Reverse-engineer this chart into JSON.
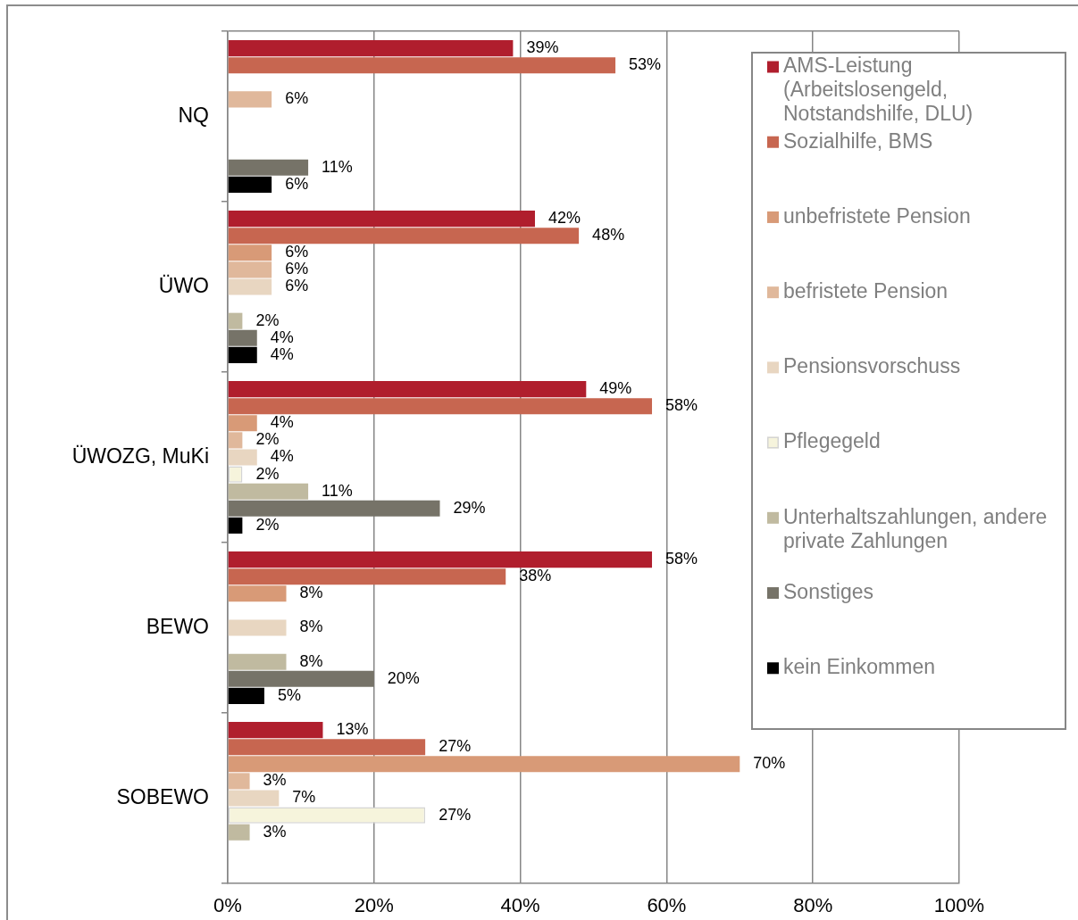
{
  "chart_data": {
    "type": "bar",
    "orientation": "horizontal",
    "categories": [
      "NQ",
      "ÜWO",
      "ÜWOZG, MuKi",
      "BEWO",
      "SOBEWO"
    ],
    "series": [
      {
        "name": "AMS-Leistung (Arbeitslosengeld, Notstandshilfe, DLU)",
        "color": "#b01e2d",
        "values": [
          39,
          42,
          49,
          58,
          13
        ],
        "value_labels": [
          "39%",
          "42%",
          "49%",
          "58%",
          "13%"
        ]
      },
      {
        "name": "Sozialhilfe, BMS",
        "color": "#c76650",
        "values": [
          53,
          48,
          58,
          38,
          27
        ],
        "value_labels": [
          "53%",
          "48%",
          "58%",
          "38%",
          "27%"
        ]
      },
      {
        "name": "unbefristete Pension",
        "color": "#d89a77",
        "values": [
          null,
          6,
          4,
          8,
          70
        ],
        "value_labels": [
          null,
          "6%",
          "4%",
          "8%",
          "70%"
        ]
      },
      {
        "name": "befristete Pension",
        "color": "#e0b89b",
        "values": [
          6,
          6,
          2,
          null,
          3
        ],
        "value_labels": [
          "6%",
          "6%",
          "2%",
          null,
          "3%"
        ]
      },
      {
        "name": "Pensionsvorschuss",
        "color": "#e8d6c1",
        "values": [
          null,
          6,
          4,
          8,
          7
        ],
        "value_labels": [
          null,
          "6%",
          "4%",
          "8%",
          "7%"
        ]
      },
      {
        "name": "Pflegegeld",
        "color": "#f6f4dc",
        "values": [
          null,
          null,
          2,
          null,
          27
        ],
        "value_labels": [
          null,
          null,
          "2%",
          null,
          "27%"
        ]
      },
      {
        "name": "Unterhaltszahlungen, andere private Zahlungen",
        "color": "#c0baa0",
        "values": [
          null,
          2,
          11,
          8,
          3
        ],
        "value_labels": [
          null,
          "2%",
          "11%",
          "8%",
          "3%"
        ]
      },
      {
        "name": "Sonstiges",
        "color": "#767368",
        "values": [
          11,
          4,
          29,
          20,
          null
        ],
        "value_labels": [
          "11%",
          "4%",
          "29%",
          "20%",
          null
        ]
      },
      {
        "name": "kein Einkommen",
        "color": "#000000",
        "values": [
          6,
          4,
          2,
          5,
          null
        ],
        "value_labels": [
          "6%",
          "4%",
          "2%",
          "5%",
          null
        ]
      }
    ],
    "xlim": [
      0,
      100
    ],
    "xticks": [
      {
        "value": 0,
        "label": "0%"
      },
      {
        "value": 20,
        "label": "20%"
      },
      {
        "value": 40,
        "label": "40%"
      },
      {
        "value": 60,
        "label": "60%"
      },
      {
        "value": 80,
        "label": "80%"
      },
      {
        "value": 100,
        "label": "100%"
      }
    ],
    "grid": "x",
    "legend": "top right"
  }
}
